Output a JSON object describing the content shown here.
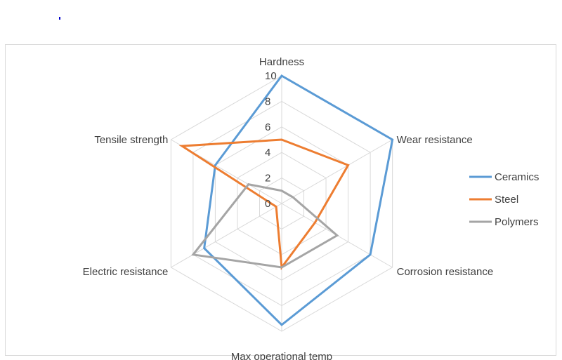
{
  "chart_data": {
    "type": "radar",
    "categories": [
      "Hardness",
      "Wear resistance",
      "Corrosion resistance",
      "Max operational temp",
      "Electric resistance",
      "Tensile strength"
    ],
    "series": [
      {
        "name": "Ceramics",
        "color": "#5B9BD5",
        "values": [
          10,
          10,
          8,
          9.5,
          7,
          6
        ]
      },
      {
        "name": "Steel",
        "color": "#ED7D31",
        "values": [
          5,
          6,
          3,
          5,
          0.5,
          9
        ]
      },
      {
        "name": "Polymers",
        "color": "#A5A5A5",
        "values": [
          1,
          1,
          5,
          5,
          8,
          3
        ]
      }
    ],
    "radial_range": [
      0,
      10
    ],
    "radial_ticks": [
      "0",
      "2",
      "4",
      "6",
      "8",
      "10"
    ],
    "grid": true,
    "legend_position": "right"
  }
}
